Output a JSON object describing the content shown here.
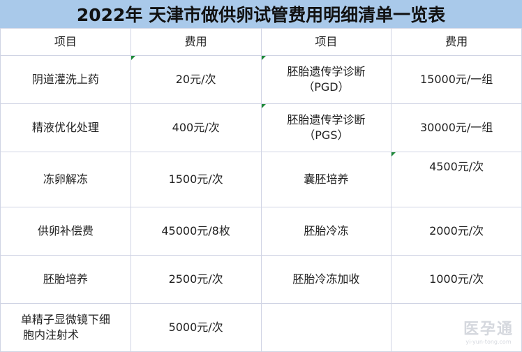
{
  "title": "2022年 天津市做供卵试管费用明细清单一览表",
  "headers": [
    "项目",
    "费用",
    "项目",
    "费用"
  ],
  "rows": [
    {
      "item1": "阴道灌洗上药",
      "fee1": "20元/次",
      "item2_line1": "胚胎遗传学诊断",
      "item2_line2": "（PGD）",
      "fee2": "15000元/一组"
    },
    {
      "item1": "精液优化处理",
      "fee1": "400元/次",
      "item2_line1": "胚胎遗传学诊断",
      "item2_line2": "（PGS）",
      "fee2": "30000元/一组"
    },
    {
      "item1": "冻卵解冻",
      "fee1": "1500元/次",
      "item2_line1": "囊胚培养",
      "fee2": "4500元/次"
    },
    {
      "item1": "供卵补偿费",
      "fee1": "45000元/8枚",
      "item2_line1": "胚胎冷冻",
      "fee2": "2000元/次"
    },
    {
      "item1": "胚胎培养",
      "fee1": "2500元/次",
      "item2_line1": "胚胎冷冻加收",
      "fee2": "1000元/次"
    },
    {
      "item1_line1": "单精子显微镜下细",
      "item1_line2": "胞内注射术",
      "fee1": "5000元/次",
      "item2_line1": "",
      "fee2": ""
    }
  ],
  "watermark": {
    "text": "医孕通",
    "sub": "yi-yun-tong.com"
  },
  "colors": {
    "title_bg": "#a9c9ea",
    "grid": "#d0d4e4",
    "comment_marker": "#1f8a3a"
  }
}
